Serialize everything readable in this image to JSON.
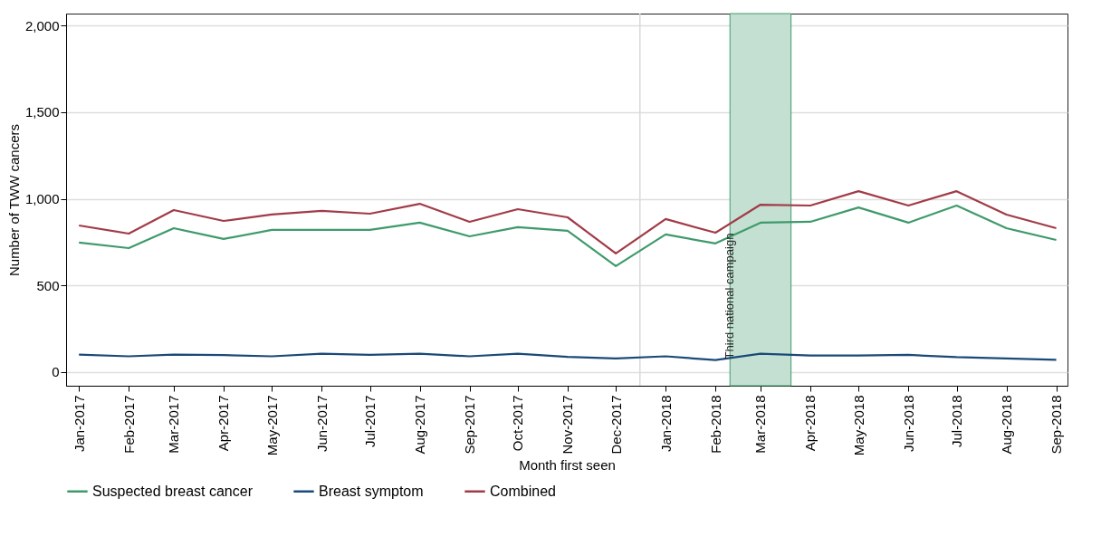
{
  "chart_data": {
    "type": "line",
    "xlabel": "Month first seen",
    "ylabel": "Number of TWW cancers",
    "x": [
      "2017-01",
      "2017-02",
      "2017-03",
      "2017-04",
      "2017-05",
      "2017-06",
      "2017-07",
      "2017-08",
      "2017-09",
      "2017-10",
      "2017-11",
      "2017-12",
      "2018-01",
      "2018-02",
      "2018-03",
      "2018-04",
      "2018-05",
      "2018-06",
      "2018-07",
      "2018-08",
      "2018-09"
    ],
    "series": [
      {
        "name": "Suspected breast cancer",
        "color": "#3f9a6b",
        "values": [
          747,
          715,
          830,
          768,
          820,
          820,
          820,
          862,
          783,
          836,
          815,
          611,
          794,
          742,
          862,
          867,
          950,
          862,
          961,
          830,
          762
        ]
      },
      {
        "name": "Breast symptom",
        "color": "#1b4a78",
        "values": [
          100,
          90,
          100,
          97,
          90,
          105,
          98,
          105,
          90,
          105,
          87,
          78,
          90,
          68,
          105,
          95,
          95,
          98,
          85,
          78,
          70
        ]
      },
      {
        "name": "Combined",
        "color": "#a13b47",
        "values": [
          846,
          799,
          935,
          872,
          909,
          930,
          914,
          971,
          867,
          940,
          893,
          684,
          883,
          804,
          966,
          961,
          1044,
          961,
          1044,
          909,
          830
        ]
      }
    ],
    "xlim": [
      "2016-12-24",
      "2018-09-08"
    ],
    "xticks": [
      {
        "value": "2017-01",
        "label": "Jan-2017"
      },
      {
        "value": "2017-02",
        "label": "Feb-2017"
      },
      {
        "value": "2017-03",
        "label": "Mar-2017"
      },
      {
        "value": "2017-04",
        "label": "Apr-2017"
      },
      {
        "value": "2017-05",
        "label": "May-2017"
      },
      {
        "value": "2017-06",
        "label": "Jun-2017"
      },
      {
        "value": "2017-07",
        "label": "Jul-2017"
      },
      {
        "value": "2017-08",
        "label": "Aug-2017"
      },
      {
        "value": "2017-09",
        "label": "Sep-2017"
      },
      {
        "value": "2017-10",
        "label": "Oct-2017"
      },
      {
        "value": "2017-11",
        "label": "Nov-2017"
      },
      {
        "value": "2017-12",
        "label": "Dec-2017"
      },
      {
        "value": "2018-01",
        "label": "Jan-2018"
      },
      {
        "value": "2018-02",
        "label": "Feb-2018"
      },
      {
        "value": "2018-03",
        "label": "Mar-2018"
      },
      {
        "value": "2018-04",
        "label": "Apr-2018"
      },
      {
        "value": "2018-05",
        "label": "May-2018"
      },
      {
        "value": "2018-06",
        "label": "Jun-2018"
      },
      {
        "value": "2018-07",
        "label": "Jul-2018"
      },
      {
        "value": "2018-08",
        "label": "Aug-2018"
      },
      {
        "value": "2018-09",
        "label": "Sep-2018"
      }
    ],
    "ylim": [
      -80,
      2070
    ],
    "yticks": [
      0,
      500,
      {
        "value": 1000,
        "label": "1,000"
      },
      {
        "value": 1500,
        "label": "1,500"
      },
      {
        "value": 2000,
        "label": "2,000"
      }
    ],
    "grid": "y",
    "legend": "bottom",
    "ref_lines": [
      {
        "axis": "x",
        "value": "2017-12-16",
        "color": "#d9d9d9"
      }
    ],
    "bands": [
      {
        "axis": "x",
        "from": "2018-02-10",
        "to": "2018-03-20",
        "label": "Third national campaign",
        "color": "#c4e0d2"
      }
    ]
  }
}
